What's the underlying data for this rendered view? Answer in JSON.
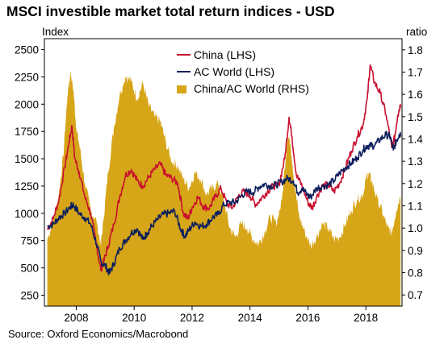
{
  "title": "MSCI investible market total return indices  - USD",
  "source": "Source: Oxford Economics/Macrobond",
  "chart_data": {
    "type": "line",
    "y_left_label": "Index",
    "y_right_label": "ratio",
    "y_left_lim": [
      150,
      2600
    ],
    "y_right_lim": [
      0.65,
      1.85
    ],
    "y_left_ticks": [
      "250",
      "500",
      "750",
      "1000",
      "1250",
      "1500",
      "1750",
      "2000",
      "2250",
      "2500"
    ],
    "y_right_ticks": [
      "0.7",
      "0.8",
      "0.9",
      "1.0",
      "1.1",
      "1.2",
      "1.3",
      "1.4",
      "1.5",
      "1.6",
      "1.7",
      "1.8"
    ],
    "x_lim": [
      2006.9,
      2019.25
    ],
    "x_ticks": [
      "2008",
      "2010",
      "2012",
      "2014",
      "2016",
      "2018"
    ],
    "legend_position": "top-center",
    "series": [
      {
        "name": "China (LHS)",
        "axis": "left",
        "style": "line",
        "color": "#c8102e",
        "x": [
          2007.0,
          2007.2,
          2007.4,
          2007.6,
          2007.75,
          2007.85,
          2007.95,
          2008.1,
          2008.3,
          2008.5,
          2008.7,
          2008.85,
          2008.95,
          2009.1,
          2009.3,
          2009.5,
          2009.7,
          2009.9,
          2010.1,
          2010.3,
          2010.5,
          2010.7,
          2010.9,
          2011.1,
          2011.3,
          2011.5,
          2011.7,
          2011.85,
          2012.0,
          2012.2,
          2012.4,
          2012.6,
          2012.8,
          2013.0,
          2013.2,
          2013.4,
          2013.6,
          2013.8,
          2014.0,
          2014.2,
          2014.4,
          2014.6,
          2014.8,
          2015.0,
          2015.2,
          2015.35,
          2015.45,
          2015.6,
          2015.8,
          2016.0,
          2016.15,
          2016.3,
          2016.5,
          2016.7,
          2016.9,
          2017.1,
          2017.3,
          2017.5,
          2017.7,
          2017.9,
          2018.05,
          2018.15,
          2018.3,
          2018.5,
          2018.7,
          2018.9,
          2019.0,
          2019.1,
          2019.2
        ],
        "y": [
          850,
          950,
          1120,
          1420,
          1650,
          1800,
          1500,
          1380,
          1150,
          1000,
          700,
          480,
          560,
          700,
          900,
          1150,
          1350,
          1400,
          1300,
          1250,
          1330,
          1400,
          1450,
          1350,
          1320,
          1280,
          1000,
          950,
          1050,
          1150,
          1060,
          1050,
          1150,
          1230,
          1090,
          1050,
          1160,
          1200,
          1160,
          1080,
          1140,
          1200,
          1250,
          1260,
          1500,
          1880,
          1700,
          1350,
          1250,
          1100,
          1050,
          1150,
          1250,
          1260,
          1200,
          1280,
          1420,
          1570,
          1700,
          1810,
          2050,
          2360,
          2200,
          2100,
          1900,
          1600,
          1700,
          1900,
          2000
        ]
      },
      {
        "name": "AC World (LHS)",
        "axis": "left",
        "style": "line",
        "color": "#0d1f5c",
        "x": [
          2007.0,
          2007.2,
          2007.4,
          2007.6,
          2007.8,
          2007.9,
          2008.1,
          2008.3,
          2008.5,
          2008.7,
          2008.85,
          2009.0,
          2009.15,
          2009.3,
          2009.5,
          2009.7,
          2009.9,
          2010.1,
          2010.3,
          2010.45,
          2010.6,
          2010.8,
          2011.0,
          2011.2,
          2011.4,
          2011.6,
          2011.75,
          2011.9,
          2012.1,
          2012.3,
          2012.5,
          2012.7,
          2012.9,
          2013.1,
          2013.3,
          2013.5,
          2013.7,
          2013.9,
          2014.1,
          2014.3,
          2014.5,
          2014.7,
          2014.9,
          2015.1,
          2015.3,
          2015.5,
          2015.65,
          2015.8,
          2016.0,
          2016.1,
          2016.3,
          2016.5,
          2016.7,
          2016.9,
          2017.1,
          2017.3,
          2017.5,
          2017.7,
          2017.9,
          2018.05,
          2018.15,
          2018.3,
          2018.5,
          2018.7,
          2018.85,
          2018.95,
          2019.05,
          2019.15,
          2019.2
        ],
        "y": [
          880,
          900,
          960,
          1000,
          1060,
          1080,
          1000,
          960,
          900,
          720,
          560,
          520,
          450,
          540,
          680,
          750,
          820,
          860,
          760,
          820,
          880,
          940,
          990,
          1000,
          1020,
          860,
          790,
          850,
          920,
          880,
          900,
          960,
          990,
          1080,
          1100,
          1100,
          1160,
          1200,
          1190,
          1240,
          1270,
          1250,
          1260,
          1290,
          1320,
          1300,
          1190,
          1230,
          1160,
          1150,
          1230,
          1250,
          1260,
          1300,
          1370,
          1420,
          1460,
          1510,
          1580,
          1620,
          1620,
          1620,
          1680,
          1720,
          1700,
          1580,
          1660,
          1720,
          1730
        ]
      },
      {
        "name": "China/AC World (RHS)",
        "axis": "right",
        "style": "area",
        "color": "#d6a518",
        "x": [
          2007.0,
          2007.2,
          2007.4,
          2007.55,
          2007.7,
          2007.8,
          2007.9,
          2008.0,
          2008.1,
          2008.3,
          2008.5,
          2008.7,
          2008.85,
          2008.95,
          2009.1,
          2009.3,
          2009.5,
          2009.7,
          2009.9,
          2010.1,
          2010.3,
          2010.5,
          2010.7,
          2010.9,
          2011.1,
          2011.3,
          2011.5,
          2011.7,
          2011.9,
          2012.1,
          2012.3,
          2012.5,
          2012.7,
          2012.9,
          2013.1,
          2013.3,
          2013.5,
          2013.7,
          2013.9,
          2014.1,
          2014.3,
          2014.5,
          2014.7,
          2014.9,
          2015.1,
          2015.3,
          2015.4,
          2015.55,
          2015.7,
          2015.9,
          2016.1,
          2016.3,
          2016.5,
          2016.7,
          2016.9,
          2017.1,
          2017.3,
          2017.5,
          2017.7,
          2017.9,
          2018.0,
          2018.1,
          2018.2,
          2018.4,
          2018.6,
          2018.75,
          2018.9,
          2019.05,
          2019.2
        ],
        "y": [
          0.95,
          1.03,
          1.15,
          1.32,
          1.6,
          1.7,
          1.62,
          1.45,
          1.38,
          1.2,
          1.08,
          1.03,
          0.92,
          1.05,
          1.25,
          1.45,
          1.6,
          1.68,
          1.66,
          1.58,
          1.65,
          1.55,
          1.5,
          1.48,
          1.38,
          1.3,
          1.28,
          1.22,
          1.18,
          1.25,
          1.22,
          1.15,
          1.18,
          1.2,
          1.12,
          1.0,
          0.96,
          1.02,
          1.0,
          0.95,
          0.93,
          0.98,
          1.05,
          1.02,
          1.12,
          1.42,
          1.38,
          1.18,
          1.05,
          0.98,
          0.92,
          0.96,
          1.02,
          1.0,
          0.95,
          0.96,
          1.02,
          1.08,
          1.13,
          1.15,
          1.22,
          1.25,
          1.21,
          1.13,
          1.06,
          1.0,
          0.98,
          1.08,
          1.15
        ]
      }
    ]
  }
}
